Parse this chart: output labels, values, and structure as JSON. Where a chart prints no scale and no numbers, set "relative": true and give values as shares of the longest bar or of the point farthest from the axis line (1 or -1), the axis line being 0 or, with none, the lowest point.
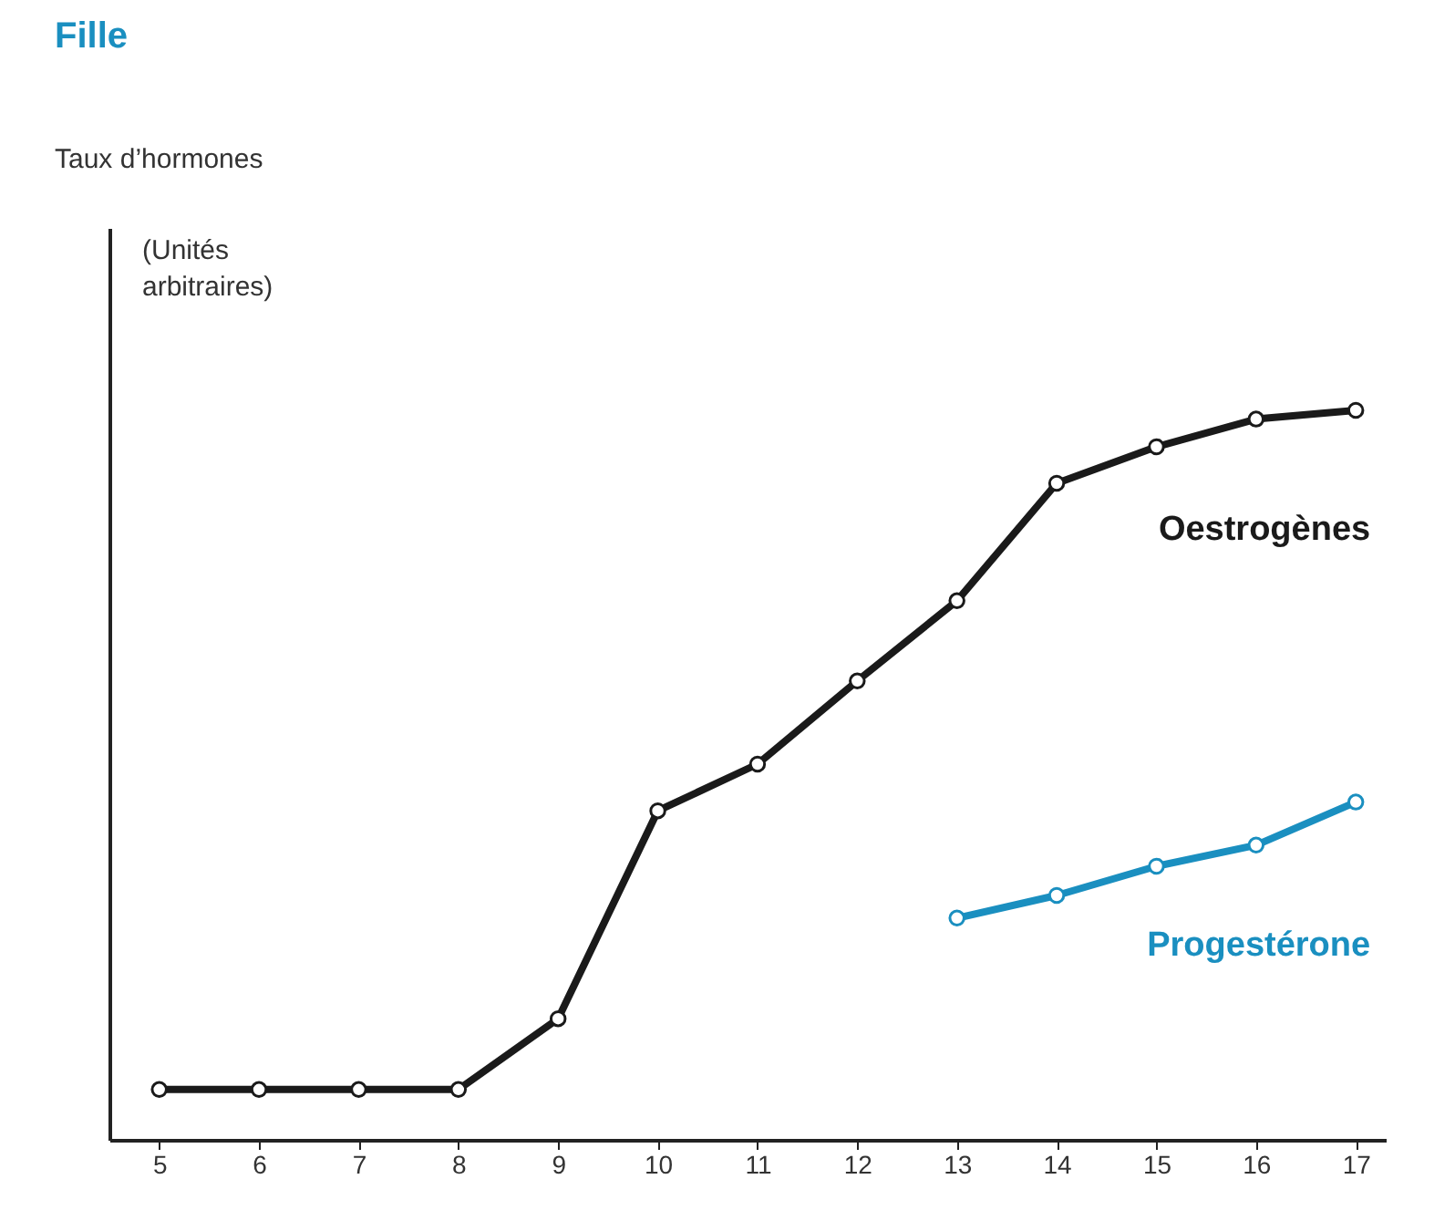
{
  "chart_data": {
    "type": "line",
    "title": "Fille",
    "annotations": [
      "Taux d’hormones",
      "(Unités arbitraires)"
    ],
    "relative": true,
    "x": [
      5,
      6,
      7,
      8,
      9,
      10,
      11,
      12,
      13,
      14,
      15,
      16,
      17
    ],
    "xlim": [
      4.5,
      17.3
    ],
    "xticks": [
      5,
      6,
      7,
      8,
      9,
      10,
      11,
      12,
      13,
      14,
      15,
      16,
      17
    ],
    "marker": "circle",
    "legend": false,
    "grid": false,
    "series": [
      {
        "name": "Oestrogènes",
        "color": "#1a1a1a",
        "values": [
          0.069,
          0.069,
          0.069,
          0.069,
          0.166,
          0.451,
          0.515,
          0.629,
          0.739,
          0.9,
          0.95,
          0.988,
          1
        ]
      },
      {
        "name": "Progestérone",
        "color": "#1a8fc0",
        "x": [
          13,
          14,
          15,
          16,
          17
        ],
        "values": [
          0.304,
          0.335,
          0.375,
          0.404,
          0.463
        ]
      }
    ]
  }
}
